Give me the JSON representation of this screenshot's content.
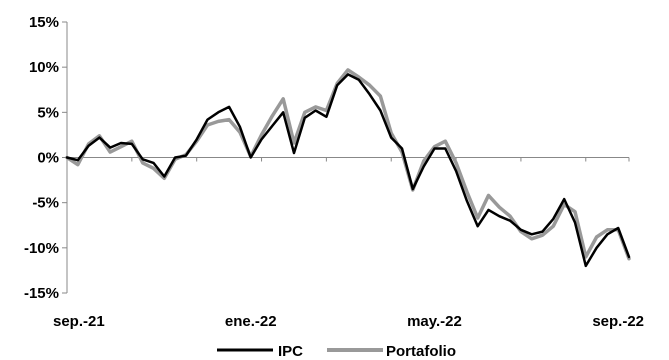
{
  "chart_data": {
    "type": "line",
    "ylim": [
      -15,
      15
    ],
    "yticks": [
      15,
      10,
      5,
      0,
      -5,
      -10,
      -15
    ],
    "ytick_labels": [
      "15%",
      "10%",
      "5%",
      "0%",
      "-5%",
      "-10%",
      "-15%"
    ],
    "x_labels": [
      {
        "label": "sep.-21",
        "index": 0
      },
      {
        "label": "ene.-22",
        "index": 17
      },
      {
        "label": "may.-22",
        "index": 34
      },
      {
        "label": "sep.-22",
        "index": 51
      }
    ],
    "series": [
      {
        "name": "IPC",
        "color": "#000000",
        "values": [
          0.0,
          -0.3,
          1.3,
          2.2,
          1.1,
          1.6,
          1.5,
          -0.2,
          -0.6,
          -2.1,
          0.0,
          0.2,
          2.0,
          4.2,
          5.0,
          5.6,
          3.4,
          0.0,
          2.0,
          3.5,
          5.0,
          0.5,
          4.4,
          5.2,
          4.5,
          8.0,
          9.2,
          8.6,
          7.0,
          5.2,
          2.2,
          1.0,
          -3.5,
          -1.0,
          1.0,
          1.0,
          -1.5,
          -4.8,
          -7.6,
          -5.8,
          -6.5,
          -7.0,
          -8.0,
          -8.5,
          -8.2,
          -6.8,
          -4.6,
          -7.2,
          -12.0,
          -10.0,
          -8.5,
          -7.8,
          -11.0
        ]
      },
      {
        "name": "Portafolio",
        "color": "#999999",
        "values": [
          0.0,
          -0.8,
          1.5,
          2.4,
          0.6,
          1.2,
          1.8,
          -0.6,
          -1.2,
          -2.3,
          -0.2,
          0.3,
          1.8,
          3.6,
          4.0,
          4.2,
          2.8,
          0.1,
          2.5,
          4.6,
          6.5,
          1.6,
          5.0,
          5.6,
          5.2,
          8.2,
          9.7,
          8.9,
          8.0,
          6.8,
          2.7,
          0.6,
          -3.6,
          -0.4,
          1.2,
          1.8,
          -0.6,
          -3.8,
          -6.7,
          -4.2,
          -5.5,
          -6.5,
          -8.2,
          -9.0,
          -8.6,
          -7.6,
          -5.2,
          -6.0,
          -11.0,
          -8.8,
          -8.0,
          -8.0,
          -11.2
        ]
      }
    ],
    "legend": "bottom-center",
    "grid": false
  }
}
